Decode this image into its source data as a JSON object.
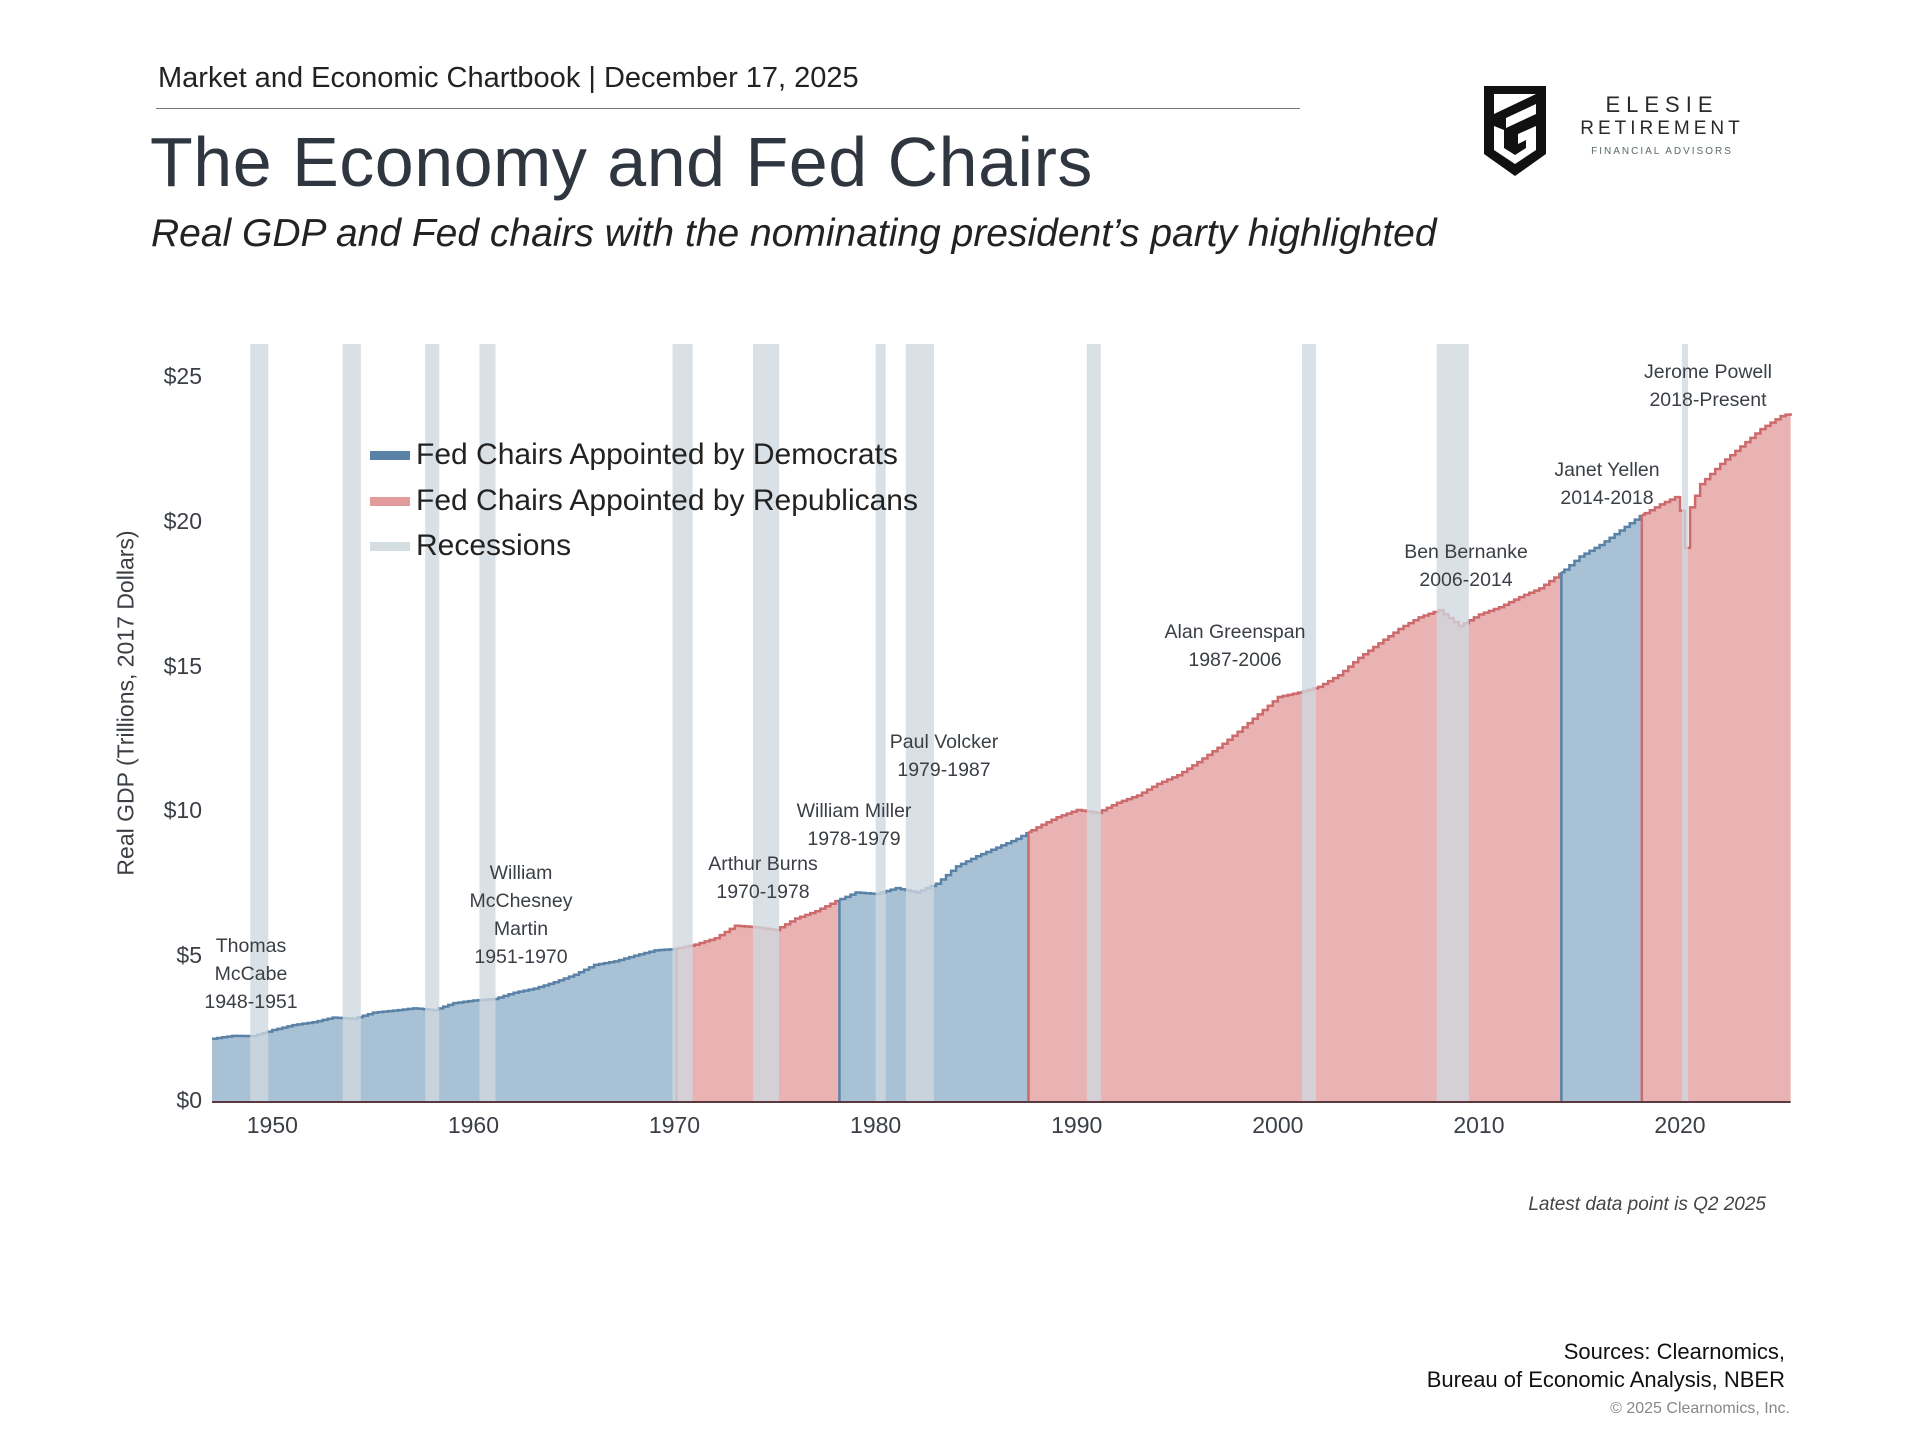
{
  "header": {
    "chartbook": "Market and Economic Chartbook | December 17, 2025",
    "title": "The Economy and Fed Chairs",
    "subtitle": "Real GDP and Fed chairs with the nominating president’s party highlighted"
  },
  "logo": {
    "line1": "ELESIE",
    "line2": "RETIREMENT",
    "line3": "FINANCIAL ADVISORS"
  },
  "footer": {
    "latest": "Latest data point is Q2 2025",
    "sources_line1": "Sources: Clearnomics,",
    "sources_line2": "Bureau of Economic Analysis, NBER",
    "copyright": "© 2025 Clearnomics, Inc."
  },
  "chart_data": {
    "type": "area",
    "title": "",
    "xlabel": "",
    "ylabel": "Real GDP (Trillions, 2017 Dollars)",
    "xlim": [
      1947,
      2025.5
    ],
    "ylim": [
      0,
      25
    ],
    "x_ticks": [
      1950,
      1960,
      1970,
      1980,
      1990,
      2000,
      2010,
      2020
    ],
    "x_tick_labels": [
      "1950",
      "1960",
      "1970",
      "1980",
      "1990",
      "2000",
      "2010",
      "2020"
    ],
    "y_ticks": [
      0,
      5,
      10,
      15,
      20,
      25
    ],
    "y_tick_labels": [
      "$0",
      "$5",
      "$10",
      "$15",
      "$20",
      "$25"
    ],
    "grid": false,
    "legend_position": "top-left",
    "legend": [
      {
        "label": "Fed Chairs Appointed by Democrats",
        "key": "D"
      },
      {
        "label": "Fed Chairs Appointed by Republicans",
        "key": "R"
      },
      {
        "label": "Recessions",
        "key": "recession"
      }
    ],
    "colors": {
      "D_fill": "#a9c1d5",
      "D_line": "#5a82a7",
      "R_fill": "#e9b3b3",
      "R_line": "#cc6a6c",
      "recession": "#cfd9df",
      "axis": "#5a3a3e"
    },
    "gdp": {
      "x": [
        1947,
        1948,
        1949,
        1950,
        1951,
        1952,
        1953,
        1954,
        1955,
        1956,
        1957,
        1958,
        1959,
        1960,
        1961,
        1962,
        1963,
        1964,
        1965,
        1966,
        1967,
        1968,
        1969,
        1970,
        1971,
        1972,
        1973,
        1974,
        1975,
        1976,
        1977,
        1978,
        1979,
        1980,
        1981,
        1982,
        1983,
        1984,
        1985,
        1986,
        1987,
        1988,
        1989,
        1990,
        1991,
        1992,
        1993,
        1994,
        1995,
        1996,
        1997,
        1998,
        1999,
        2000,
        2001,
        2002,
        2003,
        2004,
        2005,
        2006,
        2007,
        2008,
        2009,
        2010,
        2011,
        2012,
        2013,
        2014,
        2015,
        2016,
        2017,
        2018,
        2019,
        2019.9,
        2020.25,
        2020.5,
        2021,
        2022,
        2023,
        2024,
        2025,
        2025.5
      ],
      "y": [
        2.15,
        2.25,
        2.24,
        2.45,
        2.62,
        2.72,
        2.88,
        2.84,
        3.05,
        3.12,
        3.2,
        3.14,
        3.38,
        3.47,
        3.52,
        3.74,
        3.88,
        4.1,
        4.36,
        4.7,
        4.82,
        5.02,
        5.2,
        5.25,
        5.4,
        5.62,
        6.05,
        6.0,
        5.9,
        6.3,
        6.55,
        6.9,
        7.2,
        7.15,
        7.35,
        7.2,
        7.5,
        8.1,
        8.45,
        8.75,
        9.05,
        9.45,
        9.8,
        10.05,
        9.95,
        10.3,
        10.55,
        10.95,
        11.25,
        11.7,
        12.2,
        12.75,
        13.35,
        13.95,
        14.1,
        14.3,
        14.7,
        15.3,
        15.8,
        16.3,
        16.7,
        16.95,
        16.4,
        16.8,
        17.05,
        17.4,
        17.7,
        18.2,
        18.8,
        19.2,
        19.7,
        20.2,
        20.6,
        20.9,
        19.1,
        20.5,
        21.3,
        22.0,
        22.6,
        23.2,
        23.65,
        23.75
      ]
    },
    "party_periods": [
      {
        "start": 1947,
        "end": 1970.1,
        "party": "D"
      },
      {
        "start": 1970.1,
        "end": 1978.2,
        "party": "R"
      },
      {
        "start": 1978.2,
        "end": 1987.6,
        "party": "D"
      },
      {
        "start": 1987.6,
        "end": 2014.1,
        "party": "R"
      },
      {
        "start": 2014.1,
        "end": 2018.1,
        "party": "D"
      },
      {
        "start": 2018.1,
        "end": 2025.5,
        "party": "R"
      }
    ],
    "recessions": [
      [
        1948.9,
        1949.8
      ],
      [
        1953.5,
        1954.4
      ],
      [
        1957.6,
        1958.3
      ],
      [
        1960.3,
        1961.1
      ],
      [
        1969.9,
        1970.9
      ],
      [
        1973.9,
        1975.2
      ],
      [
        1980.0,
        1980.5
      ],
      [
        1981.5,
        1982.9
      ],
      [
        1990.5,
        1991.2
      ],
      [
        2001.2,
        2001.9
      ],
      [
        2007.9,
        2009.5
      ],
      [
        2020.1,
        2020.35
      ]
    ],
    "annotations": [
      {
        "lines": [
          "Thomas",
          "McCabe",
          "1948-1951"
        ]
      },
      {
        "lines": [
          "William",
          "McChesney",
          "Martin",
          "1951-1970"
        ]
      },
      {
        "lines": [
          "Arthur Burns",
          "1970-1978"
        ]
      },
      {
        "lines": [
          "William Miller",
          "1978-1979"
        ]
      },
      {
        "lines": [
          "Paul Volcker",
          "1979-1987"
        ]
      },
      {
        "lines": [
          "Alan Greenspan",
          "1987-2006"
        ]
      },
      {
        "lines": [
          "Ben Bernanke",
          "2006-2014"
        ]
      },
      {
        "lines": [
          "Janet Yellen",
          "2014-2018"
        ]
      },
      {
        "lines": [
          "Jerome Powell",
          "2018-Present"
        ]
      }
    ]
  }
}
